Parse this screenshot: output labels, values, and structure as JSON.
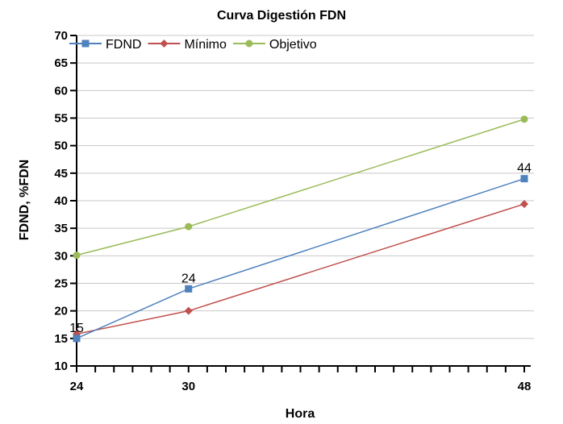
{
  "chart_data": {
    "type": "line",
    "title": "Curva Digestión FDN",
    "xlabel": "Hora",
    "ylabel": "FDND, %FDN",
    "x": [
      24,
      30,
      48
    ],
    "xlim": [
      24,
      48
    ],
    "ylim": [
      10,
      70
    ],
    "yticks": [
      10,
      15,
      20,
      25,
      30,
      35,
      40,
      45,
      50,
      55,
      60,
      65,
      70
    ],
    "xticklabels": [
      "24",
      "30",
      "48"
    ],
    "grid": true,
    "legend_position": "top-left",
    "series": [
      {
        "name": "FDND",
        "values": [
          15,
          24,
          44
        ],
        "color": "#4f81bd",
        "marker": "square",
        "data_labels": [
          "15",
          "24",
          "44"
        ]
      },
      {
        "name": "Mínimo",
        "values": [
          15.8,
          20,
          39.4
        ],
        "color": "#c0504d",
        "marker": "diamond"
      },
      {
        "name": "Objetivo",
        "values": [
          30.1,
          35.3,
          54.8
        ],
        "color": "#9bbb59",
        "marker": "circle"
      }
    ]
  }
}
